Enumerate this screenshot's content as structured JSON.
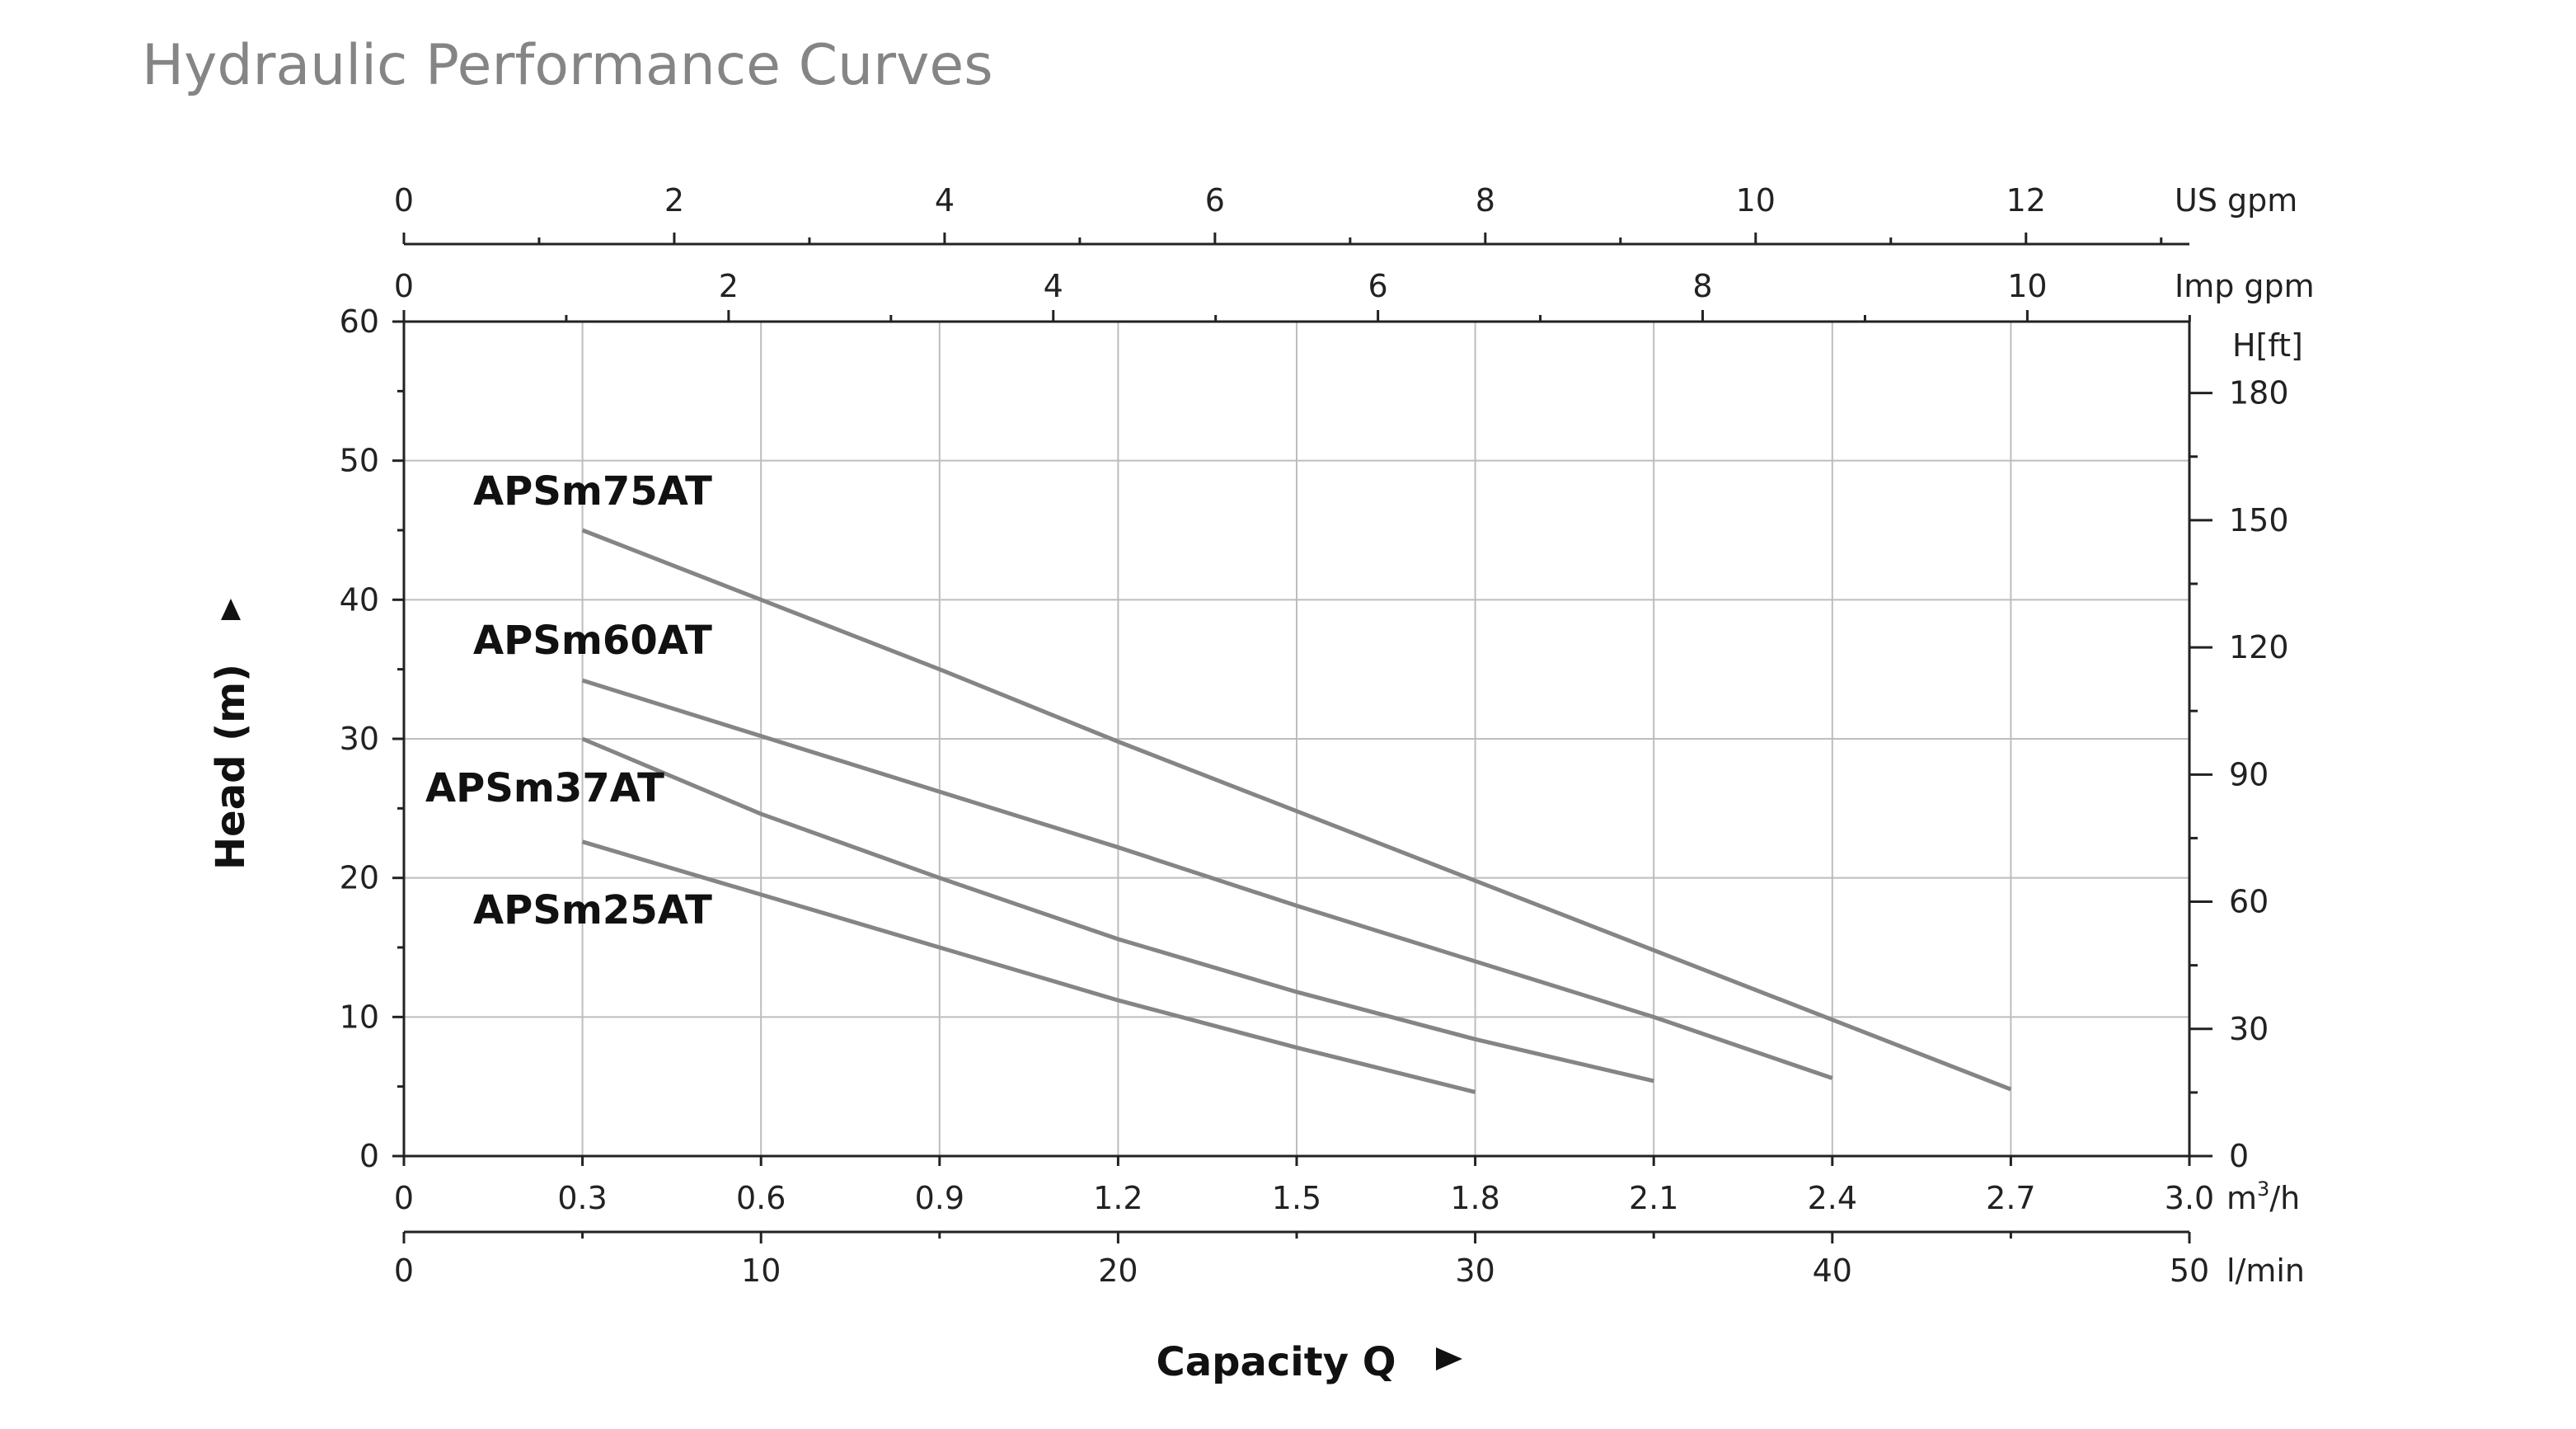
{
  "chart_data": {
    "type": "line",
    "title": "Hydraulic Performance Curves",
    "xlabel": "Capacity Q",
    "ylabel": "Head (m)",
    "xlim": [
      0,
      3.0
    ],
    "ylim": [
      0,
      60
    ],
    "x_unit": "m3/h",
    "x_unit_display": [
      "m",
      "3",
      "/h"
    ],
    "xticks": [
      "0",
      "0.3",
      "0.6",
      "0.9",
      "1.2",
      "1.5",
      "1.8",
      "2.1",
      "2.4",
      "2.7",
      "3.0"
    ],
    "yticks": [
      "0",
      "10",
      "20",
      "30",
      "40",
      "50",
      "60"
    ],
    "secondary_axes": {
      "lmin": {
        "unit": "l/min",
        "ticks": [
          "0",
          "10",
          "20",
          "30",
          "40",
          "50"
        ]
      },
      "us_gpm": {
        "unit": "US gpm",
        "ticks": [
          "0",
          "2",
          "4",
          "6",
          "8",
          "10",
          "12"
        ]
      },
      "imp_gpm": {
        "unit": "Imp gpm",
        "ticks": [
          "0",
          "2",
          "4",
          "6",
          "8",
          "10"
        ]
      },
      "h_ft": {
        "unit": "H[ft]",
        "ticks": [
          "0",
          "30",
          "60",
          "90",
          "120",
          "150",
          "180"
        ]
      }
    },
    "grid": true,
    "series": [
      {
        "name": "APSm75AT",
        "x": [
          0.3,
          0.6,
          0.9,
          1.2,
          1.5,
          1.8,
          2.1,
          2.4,
          2.7
        ],
        "y": [
          45,
          40,
          35,
          29.8,
          24.8,
          19.8,
          14.8,
          9.8,
          4.8
        ]
      },
      {
        "name": "APSm60AT",
        "x": [
          0.3,
          0.6,
          0.9,
          1.2,
          1.5,
          1.8,
          2.1,
          2.4
        ],
        "y": [
          34.2,
          30.2,
          26.2,
          22.2,
          18,
          14,
          10,
          5.6
        ]
      },
      {
        "name": "APSm37AT",
        "x": [
          0.3,
          0.6,
          0.9,
          1.2,
          1.5,
          1.8,
          2.1
        ],
        "y": [
          30,
          24.6,
          20,
          15.6,
          11.8,
          8.4,
          5.4
        ]
      },
      {
        "name": "APSm25AT",
        "x": [
          0.3,
          0.6,
          0.9,
          1.2,
          1.5,
          1.8
        ],
        "y": [
          22.6,
          18.8,
          15,
          11.2,
          7.8,
          4.6
        ]
      }
    ],
    "colors": {
      "curve": "#858585",
      "grid": "#bdbdbd",
      "axis": "#222222",
      "title": "#858585"
    }
  }
}
